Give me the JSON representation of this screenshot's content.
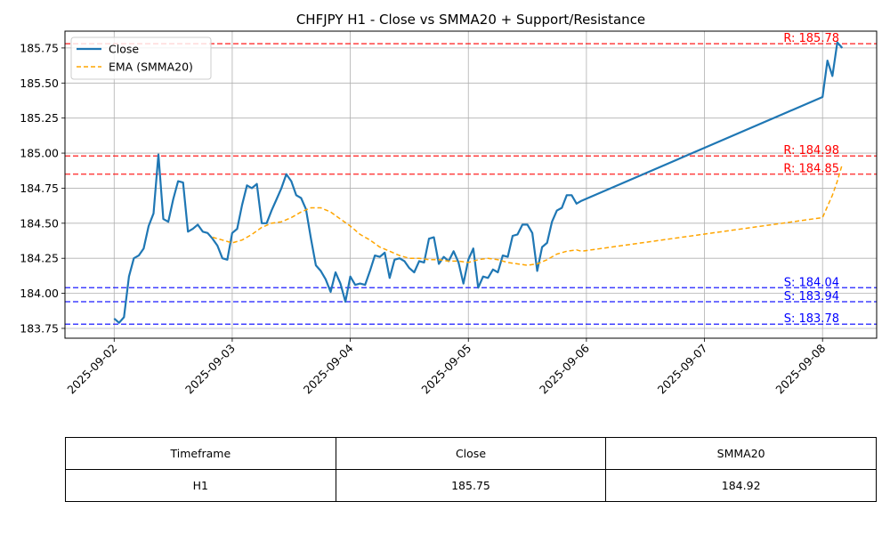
{
  "chart_data": {
    "type": "line",
    "title": "CHFJPY H1 - Close vs SMMA20 + Support/Resistance",
    "xlabel": "",
    "ylabel": "",
    "x_ticks": [
      "2025-09-02",
      "2025-09-03",
      "2025-09-04",
      "2025-09-05",
      "2025-09-06",
      "2025-09-07",
      "2025-09-08"
    ],
    "y_ticks": [
      "183.75",
      "184.00",
      "184.25",
      "184.50",
      "184.75",
      "185.00",
      "185.25",
      "185.50",
      "185.75"
    ],
    "xlim": [
      "2025-09-01 14:00",
      "2025-09-08 11:00"
    ],
    "ylim": [
      183.68,
      185.87
    ],
    "grid": true,
    "legend_position": "top-left",
    "series": [
      {
        "name": "Close",
        "color": "#1f77b4",
        "style": "solid",
        "x": [
          "2025-09-02 00:00",
          "2025-09-02 01:00",
          "2025-09-02 02:00",
          "2025-09-02 03:00",
          "2025-09-02 04:00",
          "2025-09-02 05:00",
          "2025-09-02 06:00",
          "2025-09-02 07:00",
          "2025-09-02 08:00",
          "2025-09-02 09:00",
          "2025-09-02 10:00",
          "2025-09-02 11:00",
          "2025-09-02 12:00",
          "2025-09-02 13:00",
          "2025-09-02 14:00",
          "2025-09-02 15:00",
          "2025-09-02 16:00",
          "2025-09-02 17:00",
          "2025-09-02 18:00",
          "2025-09-02 19:00",
          "2025-09-02 20:00",
          "2025-09-02 21:00",
          "2025-09-02 22:00",
          "2025-09-02 23:00",
          "2025-09-03 00:00",
          "2025-09-03 01:00",
          "2025-09-03 02:00",
          "2025-09-03 03:00",
          "2025-09-03 04:00",
          "2025-09-03 05:00",
          "2025-09-03 06:00",
          "2025-09-03 07:00",
          "2025-09-03 08:00",
          "2025-09-03 09:00",
          "2025-09-03 10:00",
          "2025-09-03 11:00",
          "2025-09-03 12:00",
          "2025-09-03 13:00",
          "2025-09-03 14:00",
          "2025-09-03 15:00",
          "2025-09-03 16:00",
          "2025-09-03 17:00",
          "2025-09-03 18:00",
          "2025-09-03 19:00",
          "2025-09-03 20:00",
          "2025-09-03 21:00",
          "2025-09-03 22:00",
          "2025-09-03 23:00",
          "2025-09-04 00:00",
          "2025-09-04 01:00",
          "2025-09-04 02:00",
          "2025-09-04 03:00",
          "2025-09-04 04:00",
          "2025-09-04 05:00",
          "2025-09-04 06:00",
          "2025-09-04 07:00",
          "2025-09-04 08:00",
          "2025-09-04 09:00",
          "2025-09-04 10:00",
          "2025-09-04 11:00",
          "2025-09-04 12:00",
          "2025-09-04 13:00",
          "2025-09-04 14:00",
          "2025-09-04 15:00",
          "2025-09-04 16:00",
          "2025-09-04 17:00",
          "2025-09-04 18:00",
          "2025-09-04 19:00",
          "2025-09-04 20:00",
          "2025-09-04 21:00",
          "2025-09-04 22:00",
          "2025-09-04 23:00",
          "2025-09-05 00:00",
          "2025-09-05 01:00",
          "2025-09-05 02:00",
          "2025-09-05 03:00",
          "2025-09-05 04:00",
          "2025-09-05 05:00",
          "2025-09-05 06:00",
          "2025-09-05 07:00",
          "2025-09-05 08:00",
          "2025-09-05 09:00",
          "2025-09-05 10:00",
          "2025-09-05 11:00",
          "2025-09-05 12:00",
          "2025-09-05 13:00",
          "2025-09-05 14:00",
          "2025-09-05 15:00",
          "2025-09-05 16:00",
          "2025-09-05 17:00",
          "2025-09-05 18:00",
          "2025-09-05 19:00",
          "2025-09-05 20:00",
          "2025-09-05 21:00",
          "2025-09-05 22:00",
          "2025-09-05 23:00",
          "2025-09-08 00:00",
          "2025-09-08 01:00",
          "2025-09-08 02:00",
          "2025-09-08 03:00",
          "2025-09-08 04:00"
        ],
        "values": [
          183.82,
          183.79,
          183.83,
          184.12,
          184.25,
          184.27,
          184.32,
          184.48,
          184.57,
          184.99,
          184.53,
          184.51,
          184.67,
          184.8,
          184.79,
          184.44,
          184.46,
          184.49,
          184.44,
          184.43,
          184.39,
          184.34,
          184.25,
          184.24,
          184.43,
          184.46,
          184.63,
          184.77,
          184.75,
          184.78,
          184.5,
          184.5,
          184.59,
          184.67,
          184.75,
          184.85,
          184.8,
          184.7,
          184.68,
          184.6,
          184.39,
          184.2,
          184.16,
          184.1,
          184.01,
          184.15,
          184.07,
          183.94,
          184.12,
          184.06,
          184.07,
          184.06,
          184.16,
          184.27,
          184.26,
          184.29,
          184.11,
          184.24,
          184.25,
          184.23,
          184.18,
          184.15,
          184.23,
          184.22,
          184.39,
          184.4,
          184.21,
          184.26,
          184.23,
          184.3,
          184.22,
          184.07,
          184.24,
          184.32,
          184.04,
          184.12,
          184.11,
          184.17,
          184.15,
          184.27,
          184.26,
          184.41,
          184.42,
          184.49,
          184.49,
          184.43,
          184.16,
          184.33,
          184.36,
          184.51,
          184.59,
          184.61,
          184.7,
          184.7,
          184.64,
          184.66,
          185.4,
          185.66,
          185.55,
          185.79,
          185.75
        ]
      },
      {
        "name": "EMA (SMMA20)",
        "color": "#ffa500",
        "style": "dashed",
        "x": [
          "2025-09-02 20:00",
          "2025-09-02 22:00",
          "2025-09-03 00:00",
          "2025-09-03 02:00",
          "2025-09-03 04:00",
          "2025-09-03 06:00",
          "2025-09-03 08:00",
          "2025-09-03 10:00",
          "2025-09-03 12:00",
          "2025-09-03 14:00",
          "2025-09-03 16:00",
          "2025-09-03 18:00",
          "2025-09-03 20:00",
          "2025-09-03 22:00",
          "2025-09-04 00:00",
          "2025-09-04 02:00",
          "2025-09-04 04:00",
          "2025-09-04 06:00",
          "2025-09-04 08:00",
          "2025-09-04 10:00",
          "2025-09-04 12:00",
          "2025-09-04 14:00",
          "2025-09-04 16:00",
          "2025-09-04 18:00",
          "2025-09-04 20:00",
          "2025-09-04 22:00",
          "2025-09-05 00:00",
          "2025-09-05 02:00",
          "2025-09-05 04:00",
          "2025-09-05 06:00",
          "2025-09-05 08:00",
          "2025-09-05 10:00",
          "2025-09-05 12:00",
          "2025-09-05 14:00",
          "2025-09-05 16:00",
          "2025-09-05 18:00",
          "2025-09-05 20:00",
          "2025-09-05 22:00",
          "2025-09-05 23:00",
          "2025-09-08 00:00",
          "2025-09-08 01:00",
          "2025-09-08 02:00",
          "2025-09-08 03:00",
          "2025-09-08 04:00"
        ],
        "values": [
          184.4,
          184.38,
          184.36,
          184.38,
          184.42,
          184.47,
          184.5,
          184.51,
          184.54,
          184.58,
          184.61,
          184.61,
          184.58,
          184.53,
          184.48,
          184.42,
          184.38,
          184.33,
          184.3,
          184.27,
          184.25,
          184.25,
          184.24,
          184.24,
          184.23,
          184.23,
          184.22,
          184.24,
          184.25,
          184.24,
          184.22,
          184.21,
          184.2,
          184.21,
          184.24,
          184.28,
          184.3,
          184.31,
          184.3,
          184.54,
          184.62,
          184.7,
          184.8,
          184.92
        ]
      }
    ],
    "hlines": [
      {
        "label": "R: 185.78",
        "value": 185.78,
        "color": "#ff0000",
        "kind": "resistance"
      },
      {
        "label": "R: 184.98",
        "value": 184.98,
        "color": "#ff0000",
        "kind": "resistance"
      },
      {
        "label": "R: 184.85",
        "value": 184.85,
        "color": "#ff0000",
        "kind": "resistance"
      },
      {
        "label": "S: 184.04",
        "value": 184.04,
        "color": "#0000ff",
        "kind": "support"
      },
      {
        "label": "S: 183.94",
        "value": 183.94,
        "color": "#0000ff",
        "kind": "support"
      },
      {
        "label": "S: 183.78",
        "value": 183.78,
        "color": "#0000ff",
        "kind": "support"
      }
    ]
  },
  "table": {
    "headers": [
      "Timeframe",
      "Close",
      "SMMA20"
    ],
    "rows": [
      [
        "H1",
        "185.75",
        "184.92"
      ]
    ]
  }
}
